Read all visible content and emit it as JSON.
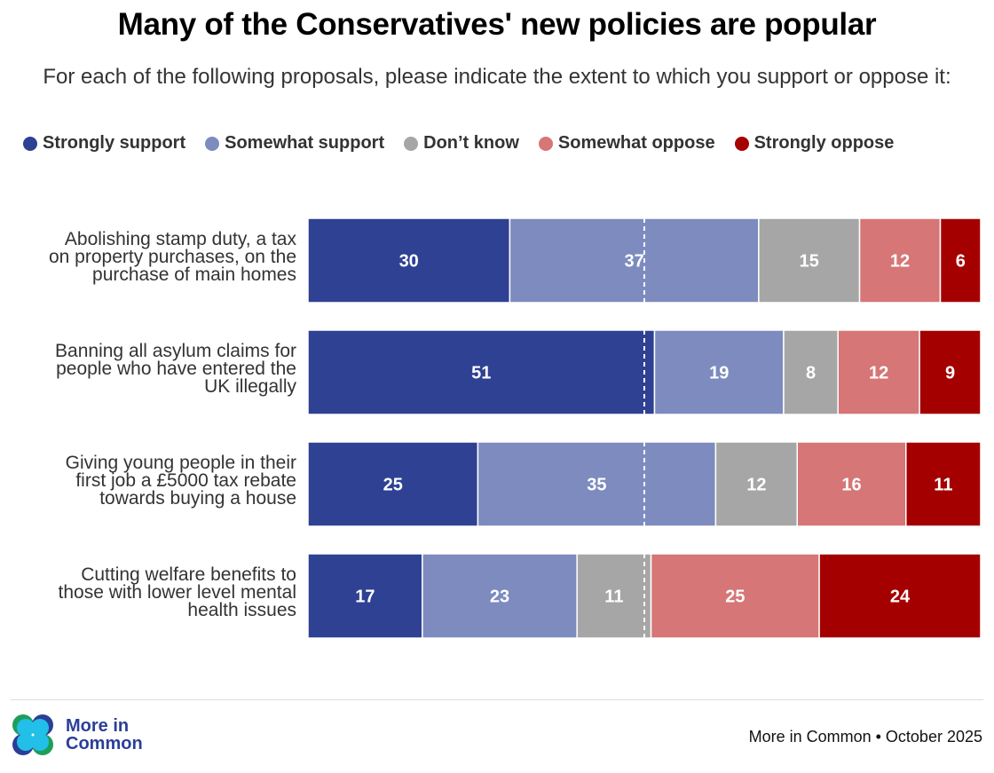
{
  "title": "Many of the Conservatives' new policies are popular",
  "subtitle": "For each of the following proposals, please indicate the extent to which you support or oppose it:",
  "footer": {
    "logo_line1": "More in",
    "logo_line2": "Common",
    "source": "More in Common • October 2025"
  },
  "chart_data": {
    "type": "bar",
    "orientation": "horizontal",
    "stacked": true,
    "title": "Many of the Conservatives' new policies are popular",
    "subtitle": "For each of the following proposals, please indicate the extent to which you support or oppose it:",
    "xlabel": "",
    "ylabel": "",
    "xlim": [
      0,
      100
    ],
    "grid": false,
    "legend_position": "top",
    "midline": 50,
    "categories": [
      "Abolishing stamp duty, a tax on property purchases, on the purchase of main homes",
      "Banning all asylum claims for people who have entered the UK illegally",
      "Giving young people in their first job a £5000 tax rebate towards buying a house",
      "Cutting welfare benefits to those with lower level mental health issues"
    ],
    "category_lines": [
      [
        "Abolishing stamp duty, a tax",
        "on property purchases, on the",
        "purchase of main homes"
      ],
      [
        "Banning all asylum claims for",
        "people who have entered the",
        "UK illegally"
      ],
      [
        "Giving young people in their",
        "first job a £5000 tax rebate",
        "towards buying a house"
      ],
      [
        "Cutting welfare benefits to",
        "those with lower level mental",
        "health issues"
      ]
    ],
    "series": [
      {
        "name": "Strongly support",
        "color": "#2e4193",
        "values": [
          30,
          51,
          25,
          17
        ]
      },
      {
        "name": "Somewhat support",
        "color": "#7d8bbf",
        "values": [
          37,
          19,
          35,
          23
        ]
      },
      {
        "name": "Don’t know",
        "color": "#a6a6a6",
        "values": [
          15,
          8,
          12,
          11
        ]
      },
      {
        "name": "Somewhat oppose",
        "color": "#d67676",
        "values": [
          12,
          12,
          16,
          25
        ]
      },
      {
        "name": "Strongly oppose",
        "color": "#a50000",
        "values": [
          6,
          9,
          11,
          24
        ]
      }
    ]
  }
}
